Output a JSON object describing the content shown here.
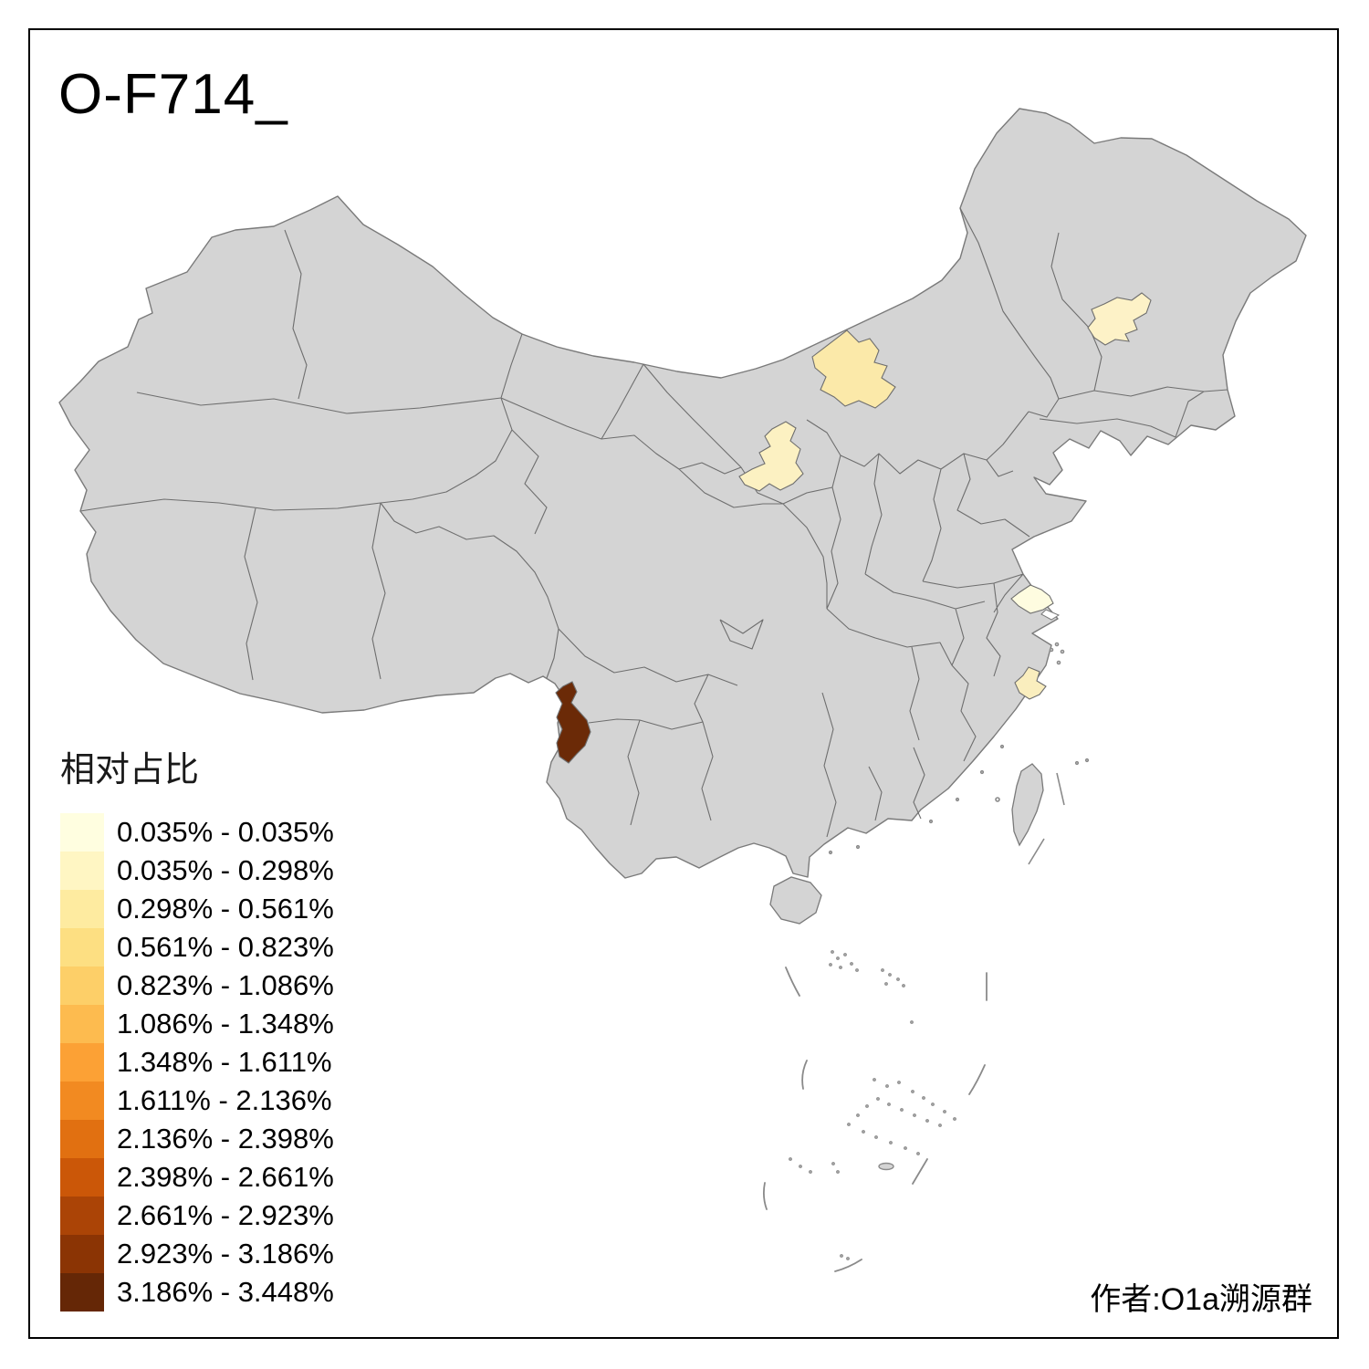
{
  "title": "O-F714_",
  "attribution": "作者:O1a溯源群",
  "legend": {
    "title": "相对占比",
    "items": [
      {
        "label": "0.035% - 0.035%",
        "color": "#FFFEE0"
      },
      {
        "label": "0.035% - 0.298%",
        "color": "#FFF6C3"
      },
      {
        "label": "0.298% - 0.561%",
        "color": "#FEEBA0"
      },
      {
        "label": "0.561% - 0.823%",
        "color": "#FDDF82"
      },
      {
        "label": "0.823% - 1.086%",
        "color": "#FDCF68"
      },
      {
        "label": "1.086% - 1.348%",
        "color": "#FDBB4F"
      },
      {
        "label": "1.348% - 1.611%",
        "color": "#FCA135"
      },
      {
        "label": "1.611% - 2.136%",
        "color": "#F28A21"
      },
      {
        "label": "2.136% - 2.398%",
        "color": "#E17011"
      },
      {
        "label": "2.398% - 2.661%",
        "color": "#CB5708"
      },
      {
        "label": "2.661% - 2.923%",
        "color": "#AB4406"
      },
      {
        "label": "2.923% - 3.186%",
        "color": "#8B3404"
      },
      {
        "label": "3.186% - 3.448%",
        "color": "#652706"
      }
    ]
  },
  "map": {
    "base_fill": "#D4D4D4",
    "border_stroke": "#6E6E6E",
    "coast_stroke": "#7A7A7A",
    "sea_fill": "#FFFFFF",
    "regions": [
      {
        "id": "region-northeast-harbin-area",
        "color": "#FDF2C7",
        "legend_bin_estimate": "0.035% - 0.298%"
      },
      {
        "id": "region-inner-mongolia-area",
        "color": "#FBE9A9",
        "legend_bin_estimate": "0.298% - 0.561%"
      },
      {
        "id": "region-ningxia-area",
        "color": "#FCF1C2",
        "legend_bin_estimate": "0.035% - 0.298%"
      },
      {
        "id": "region-jiangsu-coast-area",
        "color": "#FEFCE0",
        "legend_bin_estimate": "0.035% - 0.035%"
      },
      {
        "id": "region-zhejiang-coast-area",
        "color": "#FAEEBE",
        "legend_bin_estimate": "0.035% - 0.298%"
      },
      {
        "id": "region-west-yunnan-area",
        "color": "#6B2A07",
        "legend_bin_estimate": "3.186% - 3.448%"
      }
    ]
  },
  "chart_data": {
    "type": "heatmap",
    "subtype": "choropleth-map-of-china-prefectures",
    "title": "O-F714_",
    "legend_title": "相对占比",
    "class_breaks_percent": [
      0.035,
      0.035,
      0.298,
      0.561,
      0.823,
      1.086,
      1.348,
      1.611,
      2.136,
      2.398,
      2.661,
      2.923,
      3.186,
      3.448
    ],
    "colored_regions": [
      {
        "location": "northeast (Heilongjiang, Harbin area)",
        "bin": "0.035% - 0.298%"
      },
      {
        "location": "Inner Mongolia (central-north border)",
        "bin": "0.298% - 0.561%"
      },
      {
        "location": "Ningxia area (north-central)",
        "bin": "0.035% - 0.298%"
      },
      {
        "location": "Jiangsu coast (east)",
        "bin": "0.035% - 0.035%"
      },
      {
        "location": "Zhejiang coast (southeast)",
        "bin": "0.035% - 0.298%"
      },
      {
        "location": "western Yunnan (southwest)",
        "bin": "3.186% - 3.448%"
      }
    ],
    "legend_position": "bottom-left",
    "note": "all other prefectures gray (no data)"
  }
}
